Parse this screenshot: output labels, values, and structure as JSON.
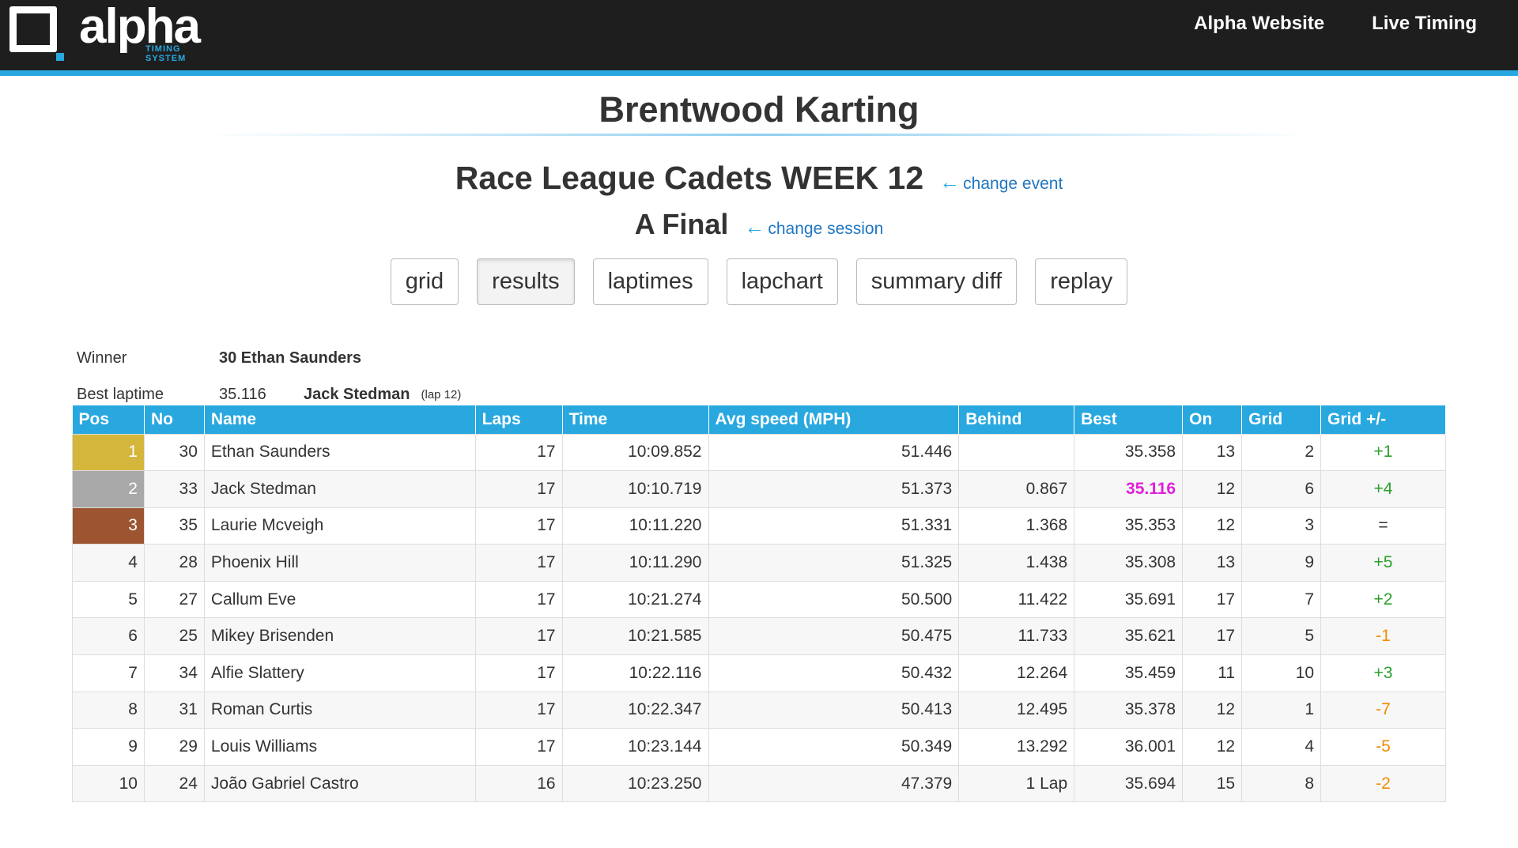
{
  "header": {
    "logo": "alpha",
    "logo_sub": "TIMING SYSTEM",
    "nav": [
      "Alpha Website",
      "Live Timing"
    ]
  },
  "venue": "Brentwood Karting",
  "event": {
    "title": "Race League Cadets WEEK 12",
    "change": "change event"
  },
  "session": {
    "title": "A Final",
    "change": "change session"
  },
  "tabs": [
    "grid",
    "results",
    "laptimes",
    "lapchart",
    "summary diff",
    "replay"
  ],
  "summary": {
    "winner_label": "Winner",
    "winner": "30 Ethan Saunders",
    "best_label": "Best laptime",
    "best_time": "35.116",
    "best_driver": "Jack Stedman",
    "best_lap": "(lap 12)"
  },
  "table": {
    "columns": [
      "Pos",
      "No",
      "Name",
      "Laps",
      "Time",
      "Avg speed (MPH)",
      "Behind",
      "Best",
      "On",
      "Grid",
      "Grid +/-"
    ],
    "rows": [
      [
        "1",
        "30",
        "Ethan Saunders",
        "17",
        "10:09.852",
        "51.446",
        "",
        "35.358",
        "13",
        "2",
        "+1"
      ],
      [
        "2",
        "33",
        "Jack Stedman",
        "17",
        "10:10.719",
        "51.373",
        "0.867",
        "35.116",
        "12",
        "6",
        "+4"
      ],
      [
        "3",
        "35",
        "Laurie Mcveigh",
        "17",
        "10:11.220",
        "51.331",
        "1.368",
        "35.353",
        "12",
        "3",
        "="
      ],
      [
        "4",
        "28",
        "Phoenix Hill",
        "17",
        "10:11.290",
        "51.325",
        "1.438",
        "35.308",
        "13",
        "9",
        "+5"
      ],
      [
        "5",
        "27",
        "Callum Eve",
        "17",
        "10:21.274",
        "50.500",
        "11.422",
        "35.691",
        "17",
        "7",
        "+2"
      ],
      [
        "6",
        "25",
        "Mikey Brisenden",
        "17",
        "10:21.585",
        "50.475",
        "11.733",
        "35.621",
        "17",
        "5",
        "-1"
      ],
      [
        "7",
        "34",
        "Alfie Slattery",
        "17",
        "10:22.116",
        "50.432",
        "12.264",
        "35.459",
        "11",
        "10",
        "+3"
      ],
      [
        "8",
        "31",
        "Roman Curtis",
        "17",
        "10:22.347",
        "50.413",
        "12.495",
        "35.378",
        "12",
        "1",
        "-7"
      ],
      [
        "9",
        "29",
        "Louis Williams",
        "17",
        "10:23.144",
        "50.349",
        "13.292",
        "36.001",
        "12",
        "4",
        "-5"
      ],
      [
        "10",
        "24",
        "João Gabriel Castro",
        "16",
        "10:23.250",
        "47.379",
        "1 Lap",
        "35.694",
        "15",
        "8",
        "-2"
      ]
    ]
  }
}
